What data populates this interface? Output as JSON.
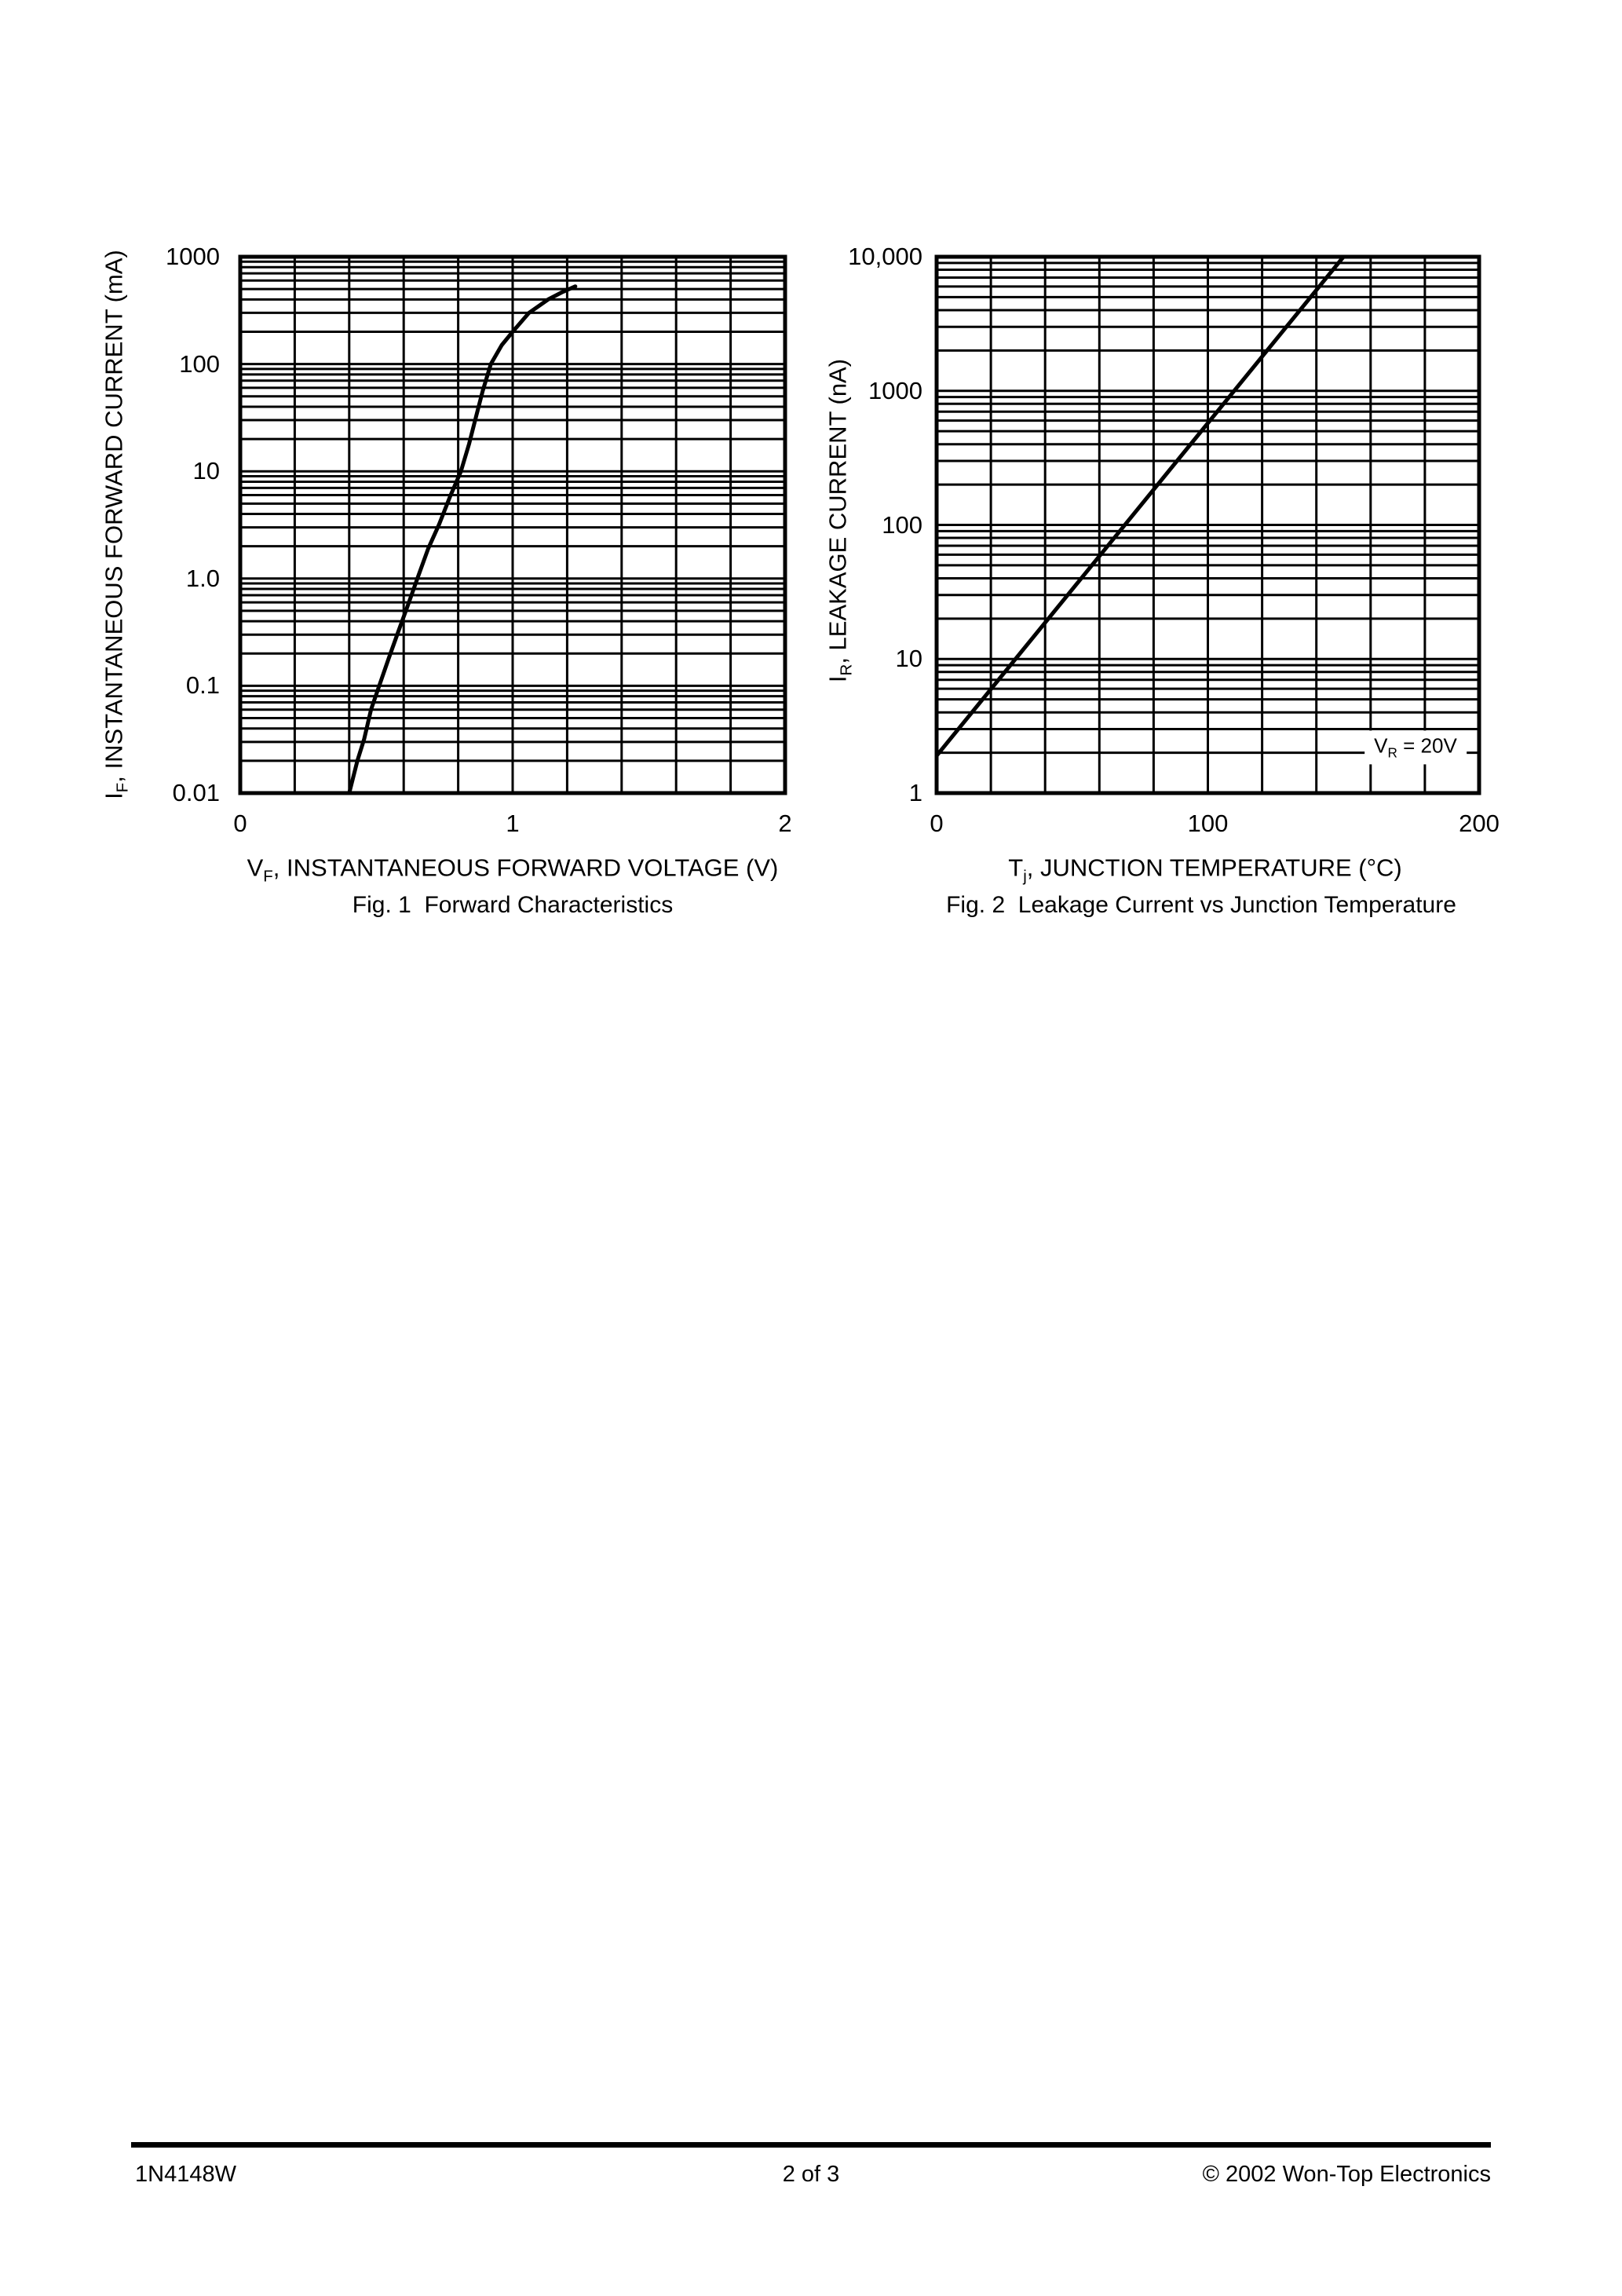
{
  "page_footer": {
    "left": "1N4148W",
    "center": "2 of 3",
    "right": "© 2002 Won-Top Electronics"
  },
  "colors": {
    "ink": "#000000",
    "paper": "#ffffff"
  },
  "chart_data": [
    {
      "type": "line",
      "title": "Fig. 1  Forward Characteristics",
      "xlabel": {
        "prefix": "V",
        "sub": "F",
        "rest": ", INSTANTANEOUS FORWARD VOLTAGE (V)"
      },
      "ylabel": {
        "prefix": "I",
        "sub": "F",
        "rest": ", INSTANTANEOUS FORWARD CURRENT (mA)"
      },
      "x_axis": {
        "scale": "linear",
        "min": 0,
        "max": 2,
        "grid_step": 0.2,
        "tick_values": [
          0,
          1,
          2
        ],
        "tick_labels": [
          "0",
          "1",
          "2"
        ]
      },
      "y_axis": {
        "scale": "log",
        "min": 0.01,
        "max": 1000,
        "tick_values": [
          1000,
          100,
          10,
          1,
          0.1,
          0.01
        ],
        "tick_labels": [
          "1000",
          "100",
          "10",
          "1.0",
          "0.1",
          "0.01"
        ]
      },
      "grid": true,
      "legend": "none",
      "series": [
        {
          "points": [
            [
              0.4,
              0.01
            ],
            [
              0.43,
              0.02
            ],
            [
              0.455,
              0.032
            ],
            [
              0.48,
              0.06
            ],
            [
              0.51,
              0.1
            ],
            [
              0.545,
              0.18
            ],
            [
              0.58,
              0.32
            ],
            [
              0.615,
              0.56
            ],
            [
              0.65,
              1.0
            ],
            [
              0.69,
              1.9
            ],
            [
              0.73,
              3.2
            ],
            [
              0.77,
              5.8
            ],
            [
              0.81,
              10
            ],
            [
              0.84,
              18
            ],
            [
              0.865,
              32
            ],
            [
              0.89,
              56
            ],
            [
              0.92,
              100
            ],
            [
              0.96,
              150
            ],
            [
              1.0,
              200
            ],
            [
              1.06,
              300
            ],
            [
              1.13,
              400
            ],
            [
              1.18,
              465
            ],
            [
              1.23,
              530
            ]
          ]
        }
      ]
    },
    {
      "type": "line",
      "title": "Fig. 2  Leakage Current vs Junction Temperature",
      "xlabel": {
        "prefix": "T",
        "sub": "j",
        "rest": ", JUNCTION TEMPERATURE (°C)"
      },
      "ylabel": {
        "prefix": "I",
        "sub": "R",
        "rest": ", LEAKAGE CURRENT (nA)"
      },
      "annotation": {
        "prefix": "V",
        "sub": "R",
        "rest": " = 20V"
      },
      "x_axis": {
        "scale": "linear",
        "min": 0,
        "max": 200,
        "grid_step": 20,
        "tick_values": [
          0,
          100,
          200
        ],
        "tick_labels": [
          "0",
          "100",
          "200"
        ]
      },
      "y_axis": {
        "scale": "log",
        "min": 1,
        "max": 10000,
        "tick_values": [
          10000,
          1000,
          100,
          10,
          1
        ],
        "tick_labels": [
          "10,000",
          "1000",
          "100",
          "10",
          "1"
        ]
      },
      "grid": true,
      "legend": "none",
      "series": [
        {
          "points": [
            [
              0,
              1.9
            ],
            [
              150,
              10000
            ]
          ]
        }
      ]
    }
  ]
}
